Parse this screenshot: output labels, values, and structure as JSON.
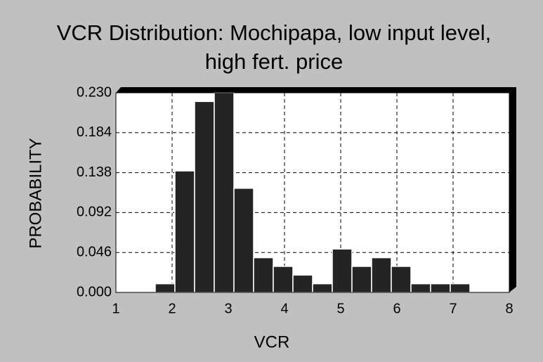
{
  "chart_data": {
    "type": "histogram",
    "title": "VCR Distribution: Mochipapa, low input level, high fert. price",
    "x_label": "VCR",
    "y_label": "PROBABILITY",
    "bins": [
      1.7,
      2.05,
      2.4,
      2.75,
      3.1,
      3.45,
      3.8,
      4.15,
      4.5,
      4.85,
      5.2,
      5.55,
      5.9,
      6.25,
      6.6,
      6.95,
      7.3
    ],
    "values": [
      0.01,
      0.14,
      0.22,
      0.23,
      0.12,
      0.04,
      0.03,
      0.02,
      0.01,
      0.05,
      0.03,
      0.04,
      0.03,
      0.01,
      0.01,
      0.01
    ],
    "color": "#242424",
    "xlim": [
      1,
      8
    ],
    "xticks": [
      1,
      2,
      3,
      4,
      5,
      6,
      7,
      8
    ],
    "ylim": [
      0,
      0.23
    ],
    "yticks": [
      {
        "value": 0,
        "label": "0.000"
      },
      {
        "value": 0.046,
        "label": "0.046"
      },
      {
        "value": 0.092,
        "label": "0.092"
      },
      {
        "value": 0.138,
        "label": "0.138"
      },
      {
        "value": 0.184,
        "label": "0.184"
      },
      {
        "value": 0.23,
        "label": "0.230"
      }
    ],
    "grid": true
  }
}
